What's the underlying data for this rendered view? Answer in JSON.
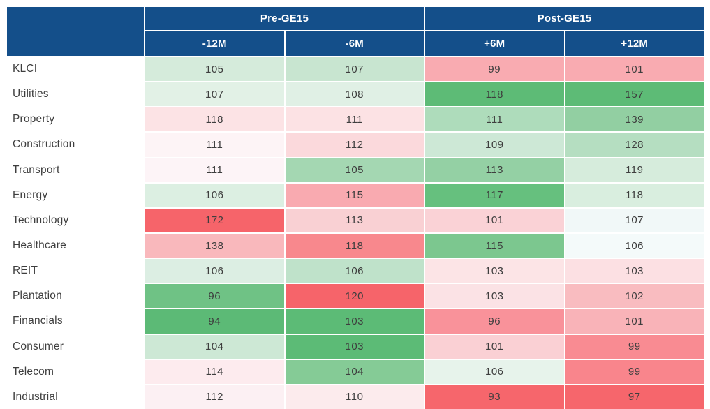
{
  "chart_data": {
    "type": "heatmap",
    "title": "",
    "column_groups": [
      {
        "label": "Pre-GE15",
        "columns": [
          "-12M",
          "-6M"
        ]
      },
      {
        "label": "Post-GE15",
        "columns": [
          "+6M",
          "+12M"
        ]
      }
    ],
    "rows": [
      "KLCI",
      "Utilities",
      "Property",
      "Construction",
      "Transport",
      "Energy",
      "Technology",
      "Healthcare",
      "REIT",
      "Plantation",
      "Financials",
      "Consumer",
      "Telecom",
      "Industrial"
    ],
    "series": [
      {
        "name": "-12M",
        "values": [
          105,
          107,
          118,
          111,
          111,
          106,
          172,
          138,
          106,
          96,
          94,
          104,
          114,
          112
        ]
      },
      {
        "name": "-6M",
        "values": [
          107,
          108,
          111,
          112,
          105,
          115,
          113,
          118,
          106,
          120,
          103,
          103,
          104,
          110
        ]
      },
      {
        "name": "+6M",
        "values": [
          99,
          118,
          111,
          109,
          113,
          117,
          101,
          115,
          103,
          103,
          96,
          101,
          106,
          93
        ]
      },
      {
        "name": "+12M",
        "values": [
          101,
          157,
          139,
          128,
          119,
          118,
          107,
          106,
          103,
          102,
          101,
          99,
          99,
          97
        ]
      }
    ],
    "cell_colors": [
      [
        "#d5ebdb",
        "#c8e5d0",
        "#f9abb1",
        "#f9abb1"
      ],
      [
        "#e2f1e6",
        "#e0f0e5",
        "#5dbb76",
        "#5dbb76"
      ],
      [
        "#fce3e5",
        "#fce2e4",
        "#aedcbb",
        "#92cfa2"
      ],
      [
        "#fdf4f6",
        "#fbd9dc",
        "#cde8d6",
        "#b5dec1"
      ],
      [
        "#fdf4f7",
        "#a4d7b2",
        "#94d0a4",
        "#d6ecdc"
      ],
      [
        "#dcefe2",
        "#f9aab0",
        "#66c07e",
        "#d9eedf"
      ],
      [
        "#f6646a",
        "#f9d0d3",
        "#fad2d6",
        "#f1f8f8"
      ],
      [
        "#f9b8bc",
        "#f8888d",
        "#7cc78f",
        "#f4fafa"
      ],
      [
        "#dceee3",
        "#bfe2ca",
        "#fce4e6",
        "#fce0e3"
      ],
      [
        "#6fc285",
        "#f6646a",
        "#fbe2e5",
        "#f9bcc0"
      ],
      [
        "#5cba76",
        "#5cbb76",
        "#f9929a",
        "#f9b3b8"
      ],
      [
        "#cde8d5",
        "#5cbb76",
        "#fad0d4",
        "#f98b92"
      ],
      [
        "#fdebee",
        "#85cb96",
        "#e7f3eb",
        "#f9858c"
      ],
      [
        "#fcf0f3",
        "#fcebed",
        "#f6666c",
        "#f6666c"
      ]
    ],
    "layout": {
      "legend": "off",
      "grid": "white 2px separators"
    }
  },
  "colors": {
    "header_bg": "#144f8a",
    "header_text": "#ffffff",
    "body_text": "#3e3e3e",
    "separator": "#ffffff"
  }
}
